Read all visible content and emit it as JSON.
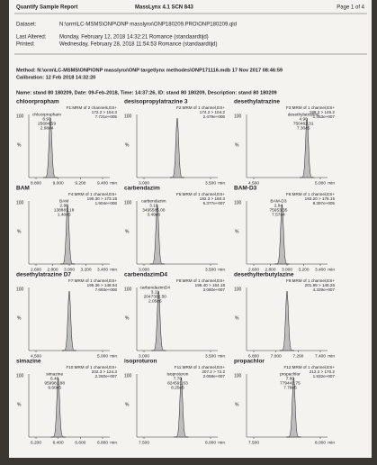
{
  "header": {
    "title": "Quantify Sample Report",
    "software": "MassLynx 4.1 SCN 843",
    "page": "Page 1 of 4"
  },
  "info": [
    [
      "Dataset:",
      "N:\\orm\\LC-MSMS\\ONP\\ONP masslynx\\ONP180209.PRO\\ONP180209.qld"
    ],
    [
      "Last Altered:",
      "Monday, February 12, 2018 14:32:21 Romance (standaardtijd)"
    ],
    [
      "Printed:",
      "Wednesday, February 28, 2018 11:54:53 Romance (standaardtijd)"
    ]
  ],
  "method": "Method: N:\\orm\\LC-MSMS\\ONP\\ONP masslynx\\ONP targetlynx methodes\\ONP171116.mdb 17 Nov 2017 08:46:59",
  "calibration": "Calibration: 12 Feb 2018 14:32:20",
  "name": "Name: stand 80  180209, Date: 09-Feb-2018, Time: 14:37:26, ID: stand 80  180209, Description: stand 80  180209",
  "axis": {
    "top": "100",
    "unit": "%",
    "x_unit": "min"
  },
  "panels": [
    {
      "title": "chloorpropham",
      "info": [
        "F1:MRM of 2 channels,ES+",
        "172.2 > 154.3",
        "7.721e+005"
      ],
      "label": [
        "chloorpropham",
        "8.93",
        "25684.59",
        "2.98e4"
      ],
      "ticks": [
        "8.800",
        "9.000",
        "9.200",
        "9.400"
      ]
    },
    {
      "title": "desisopropylatrazine 3",
      "info": [
        "F2:MRM of 1 channel,ES+",
        "174.2 > 104.2",
        "2.479e+006"
      ],
      "label": [],
      "ticks": [
        "3.000",
        "3.500"
      ]
    },
    {
      "title": "desethylatrazine",
      "info": [
        "F3:MRM of 1 channel,ES+",
        "188.2 > 146.2",
        "1.453e+007"
      ],
      "label": [
        "desethylatrazine",
        "4.90",
        "750462.31",
        "7.30e5"
      ],
      "ticks": [
        "4.500",
        "5.000"
      ]
    },
    {
      "title": "BAM",
      "info": [
        "F4:MRM of 1 channel,ES+",
        "190.30 > 173.15",
        "1.904e+006"
      ],
      "label": [
        "BAM",
        "2.98",
        "138881.18",
        "1.40e5"
      ],
      "ticks": [
        "2.600",
        "2.800",
        "3.000",
        "3.200",
        "3.400"
      ]
    },
    {
      "title": "carbendazim",
      "info": [
        "F5:MRM of 1 channel,ES+",
        "192.3 > 160.3",
        "5.377e+007"
      ],
      "label": [
        "carbendazim",
        "3.10",
        "3495585.00",
        "3.49e6"
      ],
      "ticks": [
        "3.000",
        "3.500"
      ]
    },
    {
      "title": "BAM-D3",
      "info": [
        "F6:MRM of 1 channel,ES+",
        "193.20 > 176.15",
        "9.397e+005"
      ],
      "label": [
        "BAM-D3",
        "2.94",
        "75653.35",
        "7.57e4"
      ],
      "ticks": [
        "2.600",
        "2.800",
        "3.000",
        "3.200",
        "3.400"
      ]
    },
    {
      "title": "desethylatrazine D7",
      "info": [
        "F7:MRM of 1 channel,ES+",
        "195.36 > 148.94",
        "7.693e+006"
      ],
      "label": [],
      "ticks": [
        "4.500",
        "5.000"
      ]
    },
    {
      "title": "carbendazimD4",
      "info": [
        "F8:MRM of 1 channel,ES+",
        "196.40 > 164.18",
        "3.080e+007"
      ],
      "label": [
        "carbendazimD4",
        "3.11",
        "2047302.50",
        "2.05e6"
      ],
      "ticks": [
        "3.000",
        "3.500"
      ]
    },
    {
      "title": "desethylterbutylazine",
      "info": [
        "F9:MRM of 1 channel,ES+",
        "201.99 > 146.26",
        "4.329e+007"
      ],
      "label": [],
      "ticks": [
        "6.800",
        "7.000",
        "7.200",
        "7.400"
      ]
    },
    {
      "title": "simazine",
      "info": [
        "F10:MRM of 1 channel,ES+",
        "202.3 > 124.3",
        "2.260e+007"
      ],
      "label": [
        "simazine",
        "6.40",
        "959981.88",
        "9.60e5"
      ],
      "ticks": [
        "6.200",
        "6.400",
        "6.600",
        "6.800"
      ]
    },
    {
      "title": "isoproturon",
      "info": [
        "F11:MRM of 1 channel,ES+",
        "207.2 > 72.2",
        "2.058e+007"
      ],
      "label": [
        "isoproturon",
        "7.78",
        "824591.63",
        "8.25e5"
      ],
      "ticks": [
        "7.500",
        "8.000"
      ]
    },
    {
      "title": "propachlor",
      "info": [
        "F12:MRM of 1 channel,ES+",
        "212.2 > 170.2",
        "1.932e+007"
      ],
      "label": [
        "propachlor",
        "7.80",
        "779442.75",
        "7.78e5"
      ],
      "ticks": [
        "7.500",
        "8.000"
      ]
    }
  ]
}
